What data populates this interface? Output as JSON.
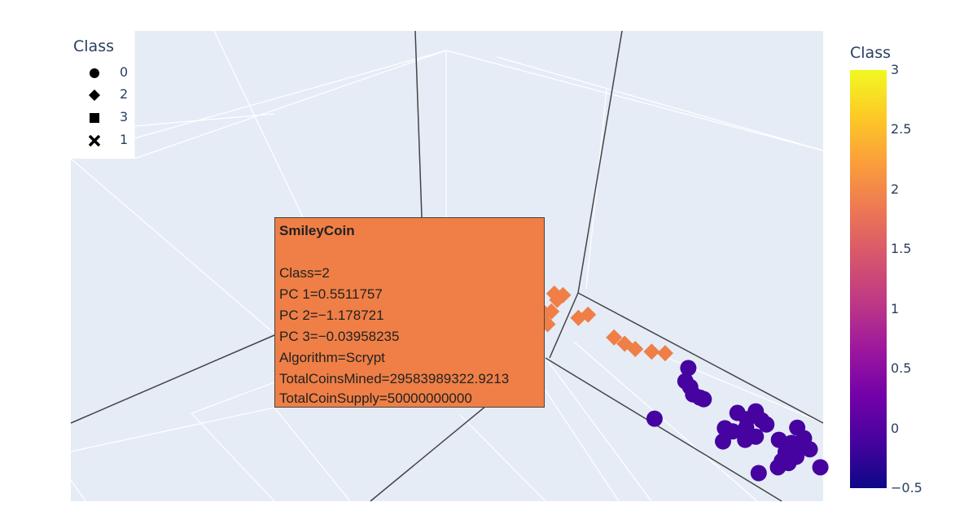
{
  "chart_data": {
    "type": "scatter",
    "title": "",
    "legend": {
      "title": "Class",
      "placement": "top-left",
      "items": [
        {
          "label": "0",
          "symbol": "circle"
        },
        {
          "label": "2",
          "symbol": "diamond"
        },
        {
          "label": "3",
          "symbol": "square"
        },
        {
          "label": "1",
          "symbol": "x"
        }
      ]
    },
    "colorbar": {
      "title": "Class",
      "colorscale": "plasma",
      "range": [
        -0.5,
        3
      ],
      "ticks": [
        "3",
        "2.5",
        "2",
        "1.5",
        "1",
        "0.5",
        "0",
        "−0.5"
      ],
      "tick_values": [
        3,
        2.5,
        2,
        1.5,
        1,
        0.5,
        0,
        -0.5
      ]
    },
    "series": [
      {
        "name": "2",
        "symbol": "diamond",
        "color": "#ef7f46",
        "points": [
          {
            "screen": [
              0.575,
              0.556
            ]
          },
          {
            "screen": [
              0.578,
              0.568
            ]
          },
          {
            "screen": [
              0.584,
              0.559
            ]
          },
          {
            "screen": [
              0.572,
              0.59
            ]
          },
          {
            "screen": [
              0.568,
              0.614
            ]
          },
          {
            "screen": [
              0.6,
              0.602
            ]
          },
          {
            "screen": [
              0.61,
              0.596
            ]
          },
          {
            "screen": [
              0.637,
              0.639
            ]
          },
          {
            "screen": [
              0.648,
              0.651
            ]
          },
          {
            "screen": [
              0.659,
              0.661
            ]
          },
          {
            "screen": [
              0.676,
              0.666
            ]
          },
          {
            "screen": [
              0.69,
              0.669
            ]
          }
        ]
      },
      {
        "name": "0",
        "symbol": "circle",
        "color": "#46039f",
        "points": [
          {
            "screen": [
              0.714,
              0.697
            ]
          },
          {
            "screen": [
              0.711,
              0.722
            ]
          },
          {
            "screen": [
              0.716,
              0.733
            ]
          },
          {
            "screen": [
              0.719,
              0.747
            ]
          },
          {
            "screen": [
              0.726,
              0.753
            ]
          },
          {
            "screen": [
              0.73,
              0.756
            ]
          },
          {
            "screen": [
              0.679,
              0.793
            ]
          },
          {
            "screen": [
              0.752,
              0.811
            ]
          },
          {
            "screen": [
              0.765,
              0.782
            ]
          },
          {
            "screen": [
              0.775,
              0.794
            ]
          },
          {
            "screen": [
              0.784,
              0.779
            ]
          },
          {
            "screen": [
              0.79,
              0.796
            ]
          },
          {
            "screen": [
              0.795,
              0.804
            ]
          },
          {
            "screen": [
              0.784,
              0.827
            ]
          },
          {
            "screen": [
              0.773,
              0.833
            ]
          },
          {
            "screen": [
              0.75,
              0.836
            ]
          },
          {
            "screen": [
              0.76,
              0.817
            ]
          },
          {
            "screen": [
              0.774,
              0.81
            ]
          },
          {
            "screen": [
              0.808,
              0.833
            ]
          },
          {
            "screen": [
              0.821,
              0.839
            ]
          },
          {
            "screen": [
              0.827,
              0.81
            ]
          },
          {
            "screen": [
              0.834,
              0.842
            ]
          },
          {
            "screen": [
              0.815,
              0.856
            ]
          },
          {
            "screen": [
              0.826,
              0.865
            ]
          },
          {
            "screen": [
              0.84,
              0.851
            ]
          },
          {
            "screen": [
              0.818,
              0.877
            ]
          },
          {
            "screen": [
              0.807,
              0.885
            ]
          },
          {
            "screen": [
              0.824,
              0.862
            ]
          },
          {
            "screen": [
              0.787,
              0.896
            ]
          },
          {
            "screen": [
              0.851,
              0.885
            ]
          },
          {
            "screen": [
              0.834,
              0.83
            ]
          },
          {
            "screen": [
              0.811,
              0.873
            ]
          }
        ]
      }
    ],
    "hover": {
      "name": "SmileyCoin",
      "lines": [
        "Class=2",
        "PC 1=0.5511757",
        "PC 2=−1.178721",
        "PC 3=−0.03958235",
        "Algorithm=Scrypt",
        "TotalCoinsMined=29583989322.9213",
        "TotalCoinSupply=50000000000"
      ]
    }
  }
}
